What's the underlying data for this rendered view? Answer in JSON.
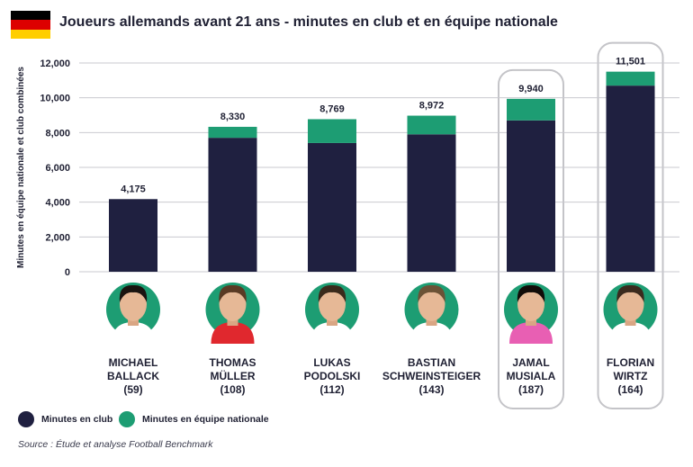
{
  "header": {
    "title": "Joueurs allemands avant 21 ans - minutes en club et en équipe nationale"
  },
  "flag": {
    "colors": [
      "#000000",
      "#dd0000",
      "#ffce00"
    ]
  },
  "colors": {
    "club": "#1f2040",
    "national": "#1d9d73",
    "grid": "#c9c9cf",
    "highlight_border": "#c4c4c8",
    "photo_circle": "#1d9d73"
  },
  "chart_data": {
    "type": "bar",
    "stacked": true,
    "title": "Joueurs allemands avant 21 ans - minutes en club et en équipe nationale",
    "ylabel": "Minutes en équipe nationale et club combinées",
    "ylim": [
      0,
      12000
    ],
    "yticks": [
      "0",
      "2,000",
      "4,000",
      "6,000",
      "8,000",
      "10,000",
      "12,000"
    ],
    "ytick_values": [
      0,
      2000,
      4000,
      6000,
      8000,
      10000,
      12000
    ],
    "categories": [
      "MICHAEL BALLACK (59)",
      "THOMAS MÜLLER (108)",
      "LUKAS PODOLSKI (112)",
      "BASTIAN SCHWEINSTEIGER (143)",
      "JAMAL MUSIALA (187)",
      "FLORIAN WIRTZ (164)"
    ],
    "series": [
      {
        "name": "Minutes en club",
        "values": [
          4175,
          7700,
          7400,
          7900,
          8700,
          10700
        ]
      },
      {
        "name": "Minutes en équipe nationale",
        "values": [
          0,
          630,
          1369,
          1072,
          1240,
          801
        ]
      }
    ],
    "totals": [
      4175,
      8330,
      8769,
      8972,
      9940,
      11501
    ],
    "total_labels": [
      "4,175",
      "8,330",
      "8,769",
      "8,972",
      "9,940",
      "11,501"
    ],
    "highlighted": [
      false,
      false,
      false,
      false,
      true,
      true
    ],
    "grid": true,
    "legend_position": "bottom-left"
  },
  "players": [
    {
      "first": "MICHAEL",
      "last": "BALLACK",
      "games": "(59)",
      "jersey": "#ffffff",
      "hair": "#1a1410"
    },
    {
      "first": "THOMAS",
      "last": "MÜLLER",
      "games": "(108)",
      "jersey": "#e0282e",
      "hair": "#5a3a24"
    },
    {
      "first": "LUKAS",
      "last": "PODOLSKI",
      "games": "(112)",
      "jersey": "#ffffff",
      "hair": "#3a2a1c"
    },
    {
      "first": "BASTIAN",
      "last": "SCHWEINSTEIGER",
      "games": "(143)",
      "jersey": "#ffffff",
      "hair": "#6b5236"
    },
    {
      "first": "JAMAL",
      "last": "MUSIALA",
      "games": "(187)",
      "jersey": "#e85fb3",
      "hair": "#120c08"
    },
    {
      "first": "FLORIAN",
      "last": "WIRTZ",
      "games": "(164)",
      "jersey": "#ffffff",
      "hair": "#3b2a1e"
    }
  ],
  "legend": {
    "club_label": "Minutes en club",
    "national_label": "Minutes en équipe nationale"
  },
  "source": "Source : Étude et analyse Football Benchmark"
}
